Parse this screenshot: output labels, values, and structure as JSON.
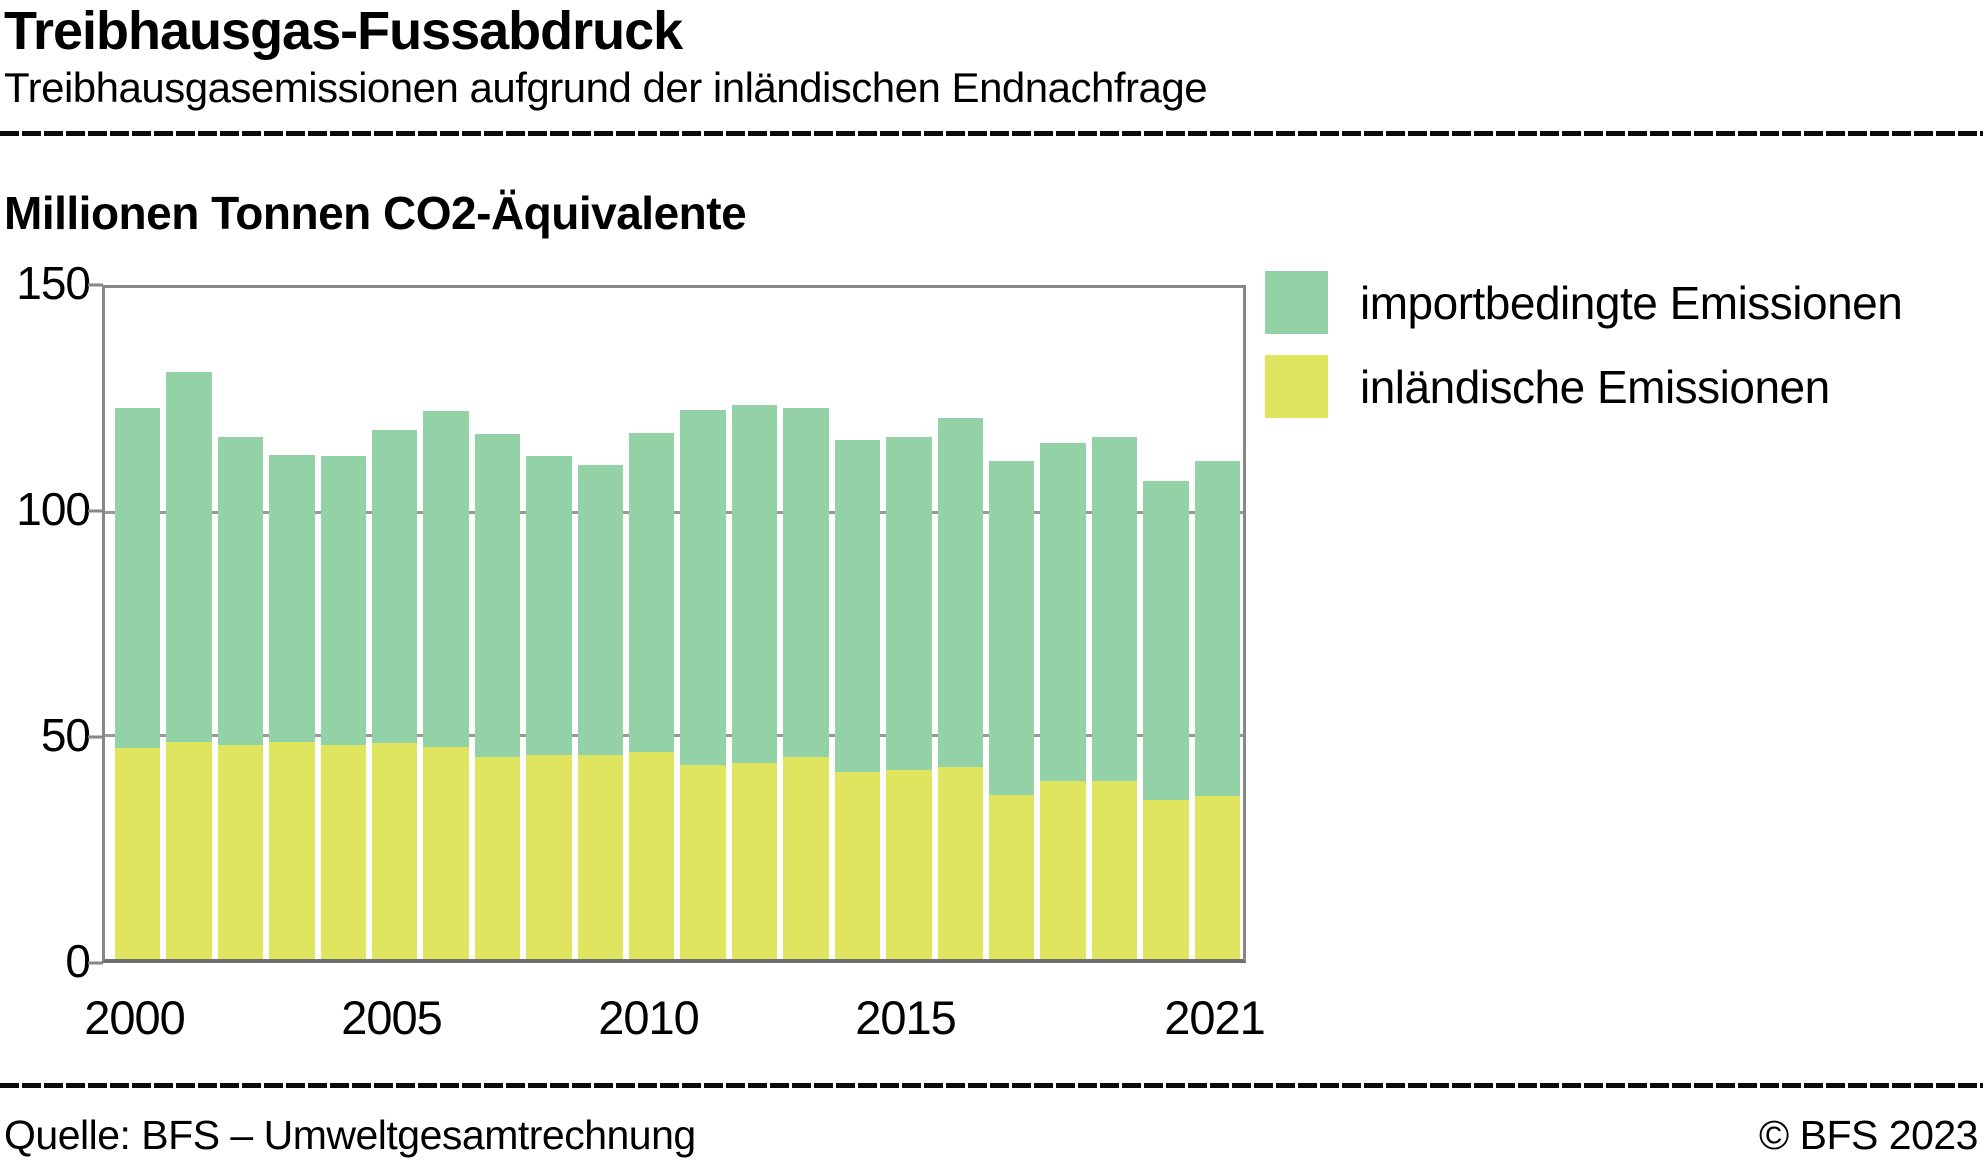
{
  "page": {
    "title": "Treibhausgas-Fussabdruck",
    "subtitle": "Treibhausgasemissionen aufgrund der inländischen Endnachfrage",
    "source": "Quelle: BFS – Umweltgesamtrechnung",
    "copyright": "© BFS 2023"
  },
  "chart_data": {
    "type": "bar",
    "stacked": true,
    "title": "Millionen Tonnen CO2-Äquivalente",
    "categories": [
      2000,
      2001,
      2002,
      2003,
      2004,
      2005,
      2006,
      2007,
      2008,
      2009,
      2010,
      2011,
      2012,
      2013,
      2014,
      2015,
      2016,
      2017,
      2018,
      2019,
      2020,
      2021
    ],
    "series": [
      {
        "name": "inländische Emissionen",
        "color": "#dfe55f",
        "values": [
          47.2,
          48.6,
          47.8,
          48.5,
          47.9,
          48.3,
          47.5,
          45.2,
          45.7,
          45.5,
          46.2,
          43.3,
          43.9,
          45.2,
          41.7,
          42.3,
          43.0,
          36.7,
          39.8,
          39.8,
          35.5,
          36.4
        ]
      },
      {
        "name": "importbedingte Emissionen",
        "color": "#93d2a6",
        "values": [
          75.9,
          82.6,
          68.9,
          64.2,
          64.6,
          69.9,
          75.1,
          72.2,
          66.7,
          64.9,
          71.3,
          79.5,
          80.0,
          78.0,
          74.4,
          74.3,
          77.9,
          74.7,
          75.6,
          76.9,
          71.3,
          75.0
        ]
      }
    ],
    "totals": [
      123.1,
      131.2,
      116.7,
      112.7,
      112.5,
      118.2,
      122.6,
      117.4,
      112.4,
      110.4,
      117.5,
      122.8,
      123.9,
      123.2,
      116.1,
      116.6,
      120.9,
      111.4,
      115.4,
      116.7,
      106.8,
      111.4
    ],
    "ylabel": "",
    "xlabel": "",
    "ylim": [
      0,
      150
    ],
    "yticks": [
      0,
      50,
      100,
      150
    ],
    "xtick_labels": [
      "2000",
      "2005",
      "2010",
      "2015",
      "2021"
    ],
    "xtick_indices": [
      0,
      5,
      10,
      15,
      21
    ],
    "grid": "horizontal",
    "legend_position": "top-right",
    "legend_order": [
      "importbedingte Emissionen",
      "inländische Emissionen"
    ]
  },
  "colors": {
    "frame": "#878787",
    "gridline": "#9a9a9a",
    "baseline": "#6f6f6f",
    "rule": "#0a0a0a"
  }
}
